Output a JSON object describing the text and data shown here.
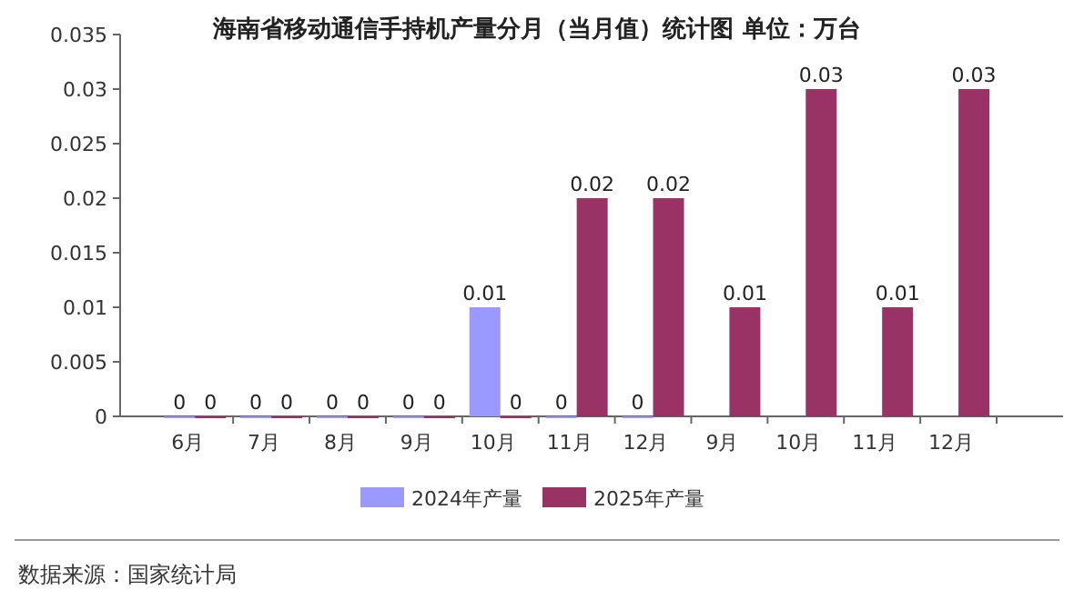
{
  "chart_data": {
    "type": "bar",
    "title": "海南省移动通信手持机产量分月（当月值）统计图 单位：万台",
    "categories": [
      "6月",
      "7月",
      "8月",
      "9月",
      "10月",
      "11月",
      "12月",
      "9月",
      "10月",
      "11月",
      "12月"
    ],
    "series": [
      {
        "name": "2024年产量",
        "color": "#9999ff",
        "values": [
          0,
          0,
          0,
          0,
          0.01,
          0,
          0,
          null,
          null,
          null,
          null
        ]
      },
      {
        "name": "2025年产量",
        "color": "#993366",
        "values": [
          0,
          0,
          0,
          0,
          0,
          0.02,
          0.02,
          0.01,
          0.03,
          0.01,
          0.03
        ]
      }
    ],
    "ylim": [
      0,
      0.035
    ],
    "yticks": [
      0,
      0.005,
      0.01,
      0.015,
      0.02,
      0.025,
      0.03,
      0.035
    ],
    "data_labels": true,
    "legend": "bottom",
    "annotations": [
      "数据来源：国家统计局"
    ]
  }
}
